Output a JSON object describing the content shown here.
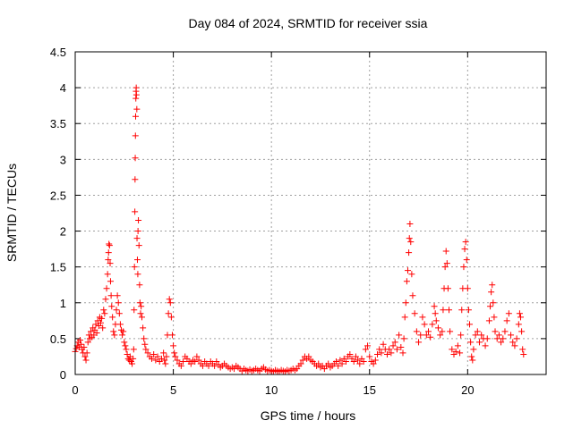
{
  "chart_data": {
    "type": "scatter",
    "title": "Day 084 of 2024, SRMTID for receiver ssia",
    "xlabel": "GPS time / hours",
    "ylabel": "SRMTID / TECUs",
    "xlim": [
      0,
      24
    ],
    "ylim": [
      0,
      4.5
    ],
    "xticks": [
      0,
      5,
      10,
      15,
      20
    ],
    "xtick_labels": [
      "0",
      "5",
      "10",
      "15",
      "20"
    ],
    "yticks": [
      0,
      0.5,
      1,
      1.5,
      2,
      2.5,
      3,
      3.5,
      4,
      4.5
    ],
    "ytick_labels": [
      "0",
      "0.5",
      "1",
      "1.5",
      "2",
      "2.5",
      "3",
      "3.5",
      "4",
      "4.5"
    ],
    "grid": true,
    "marker": "+",
    "color": "#ff0000",
    "series": [
      {
        "name": "SRMTID",
        "points": [
          [
            0.0,
            0.32
          ],
          [
            0.05,
            0.36
          ],
          [
            0.1,
            0.4
          ],
          [
            0.15,
            0.45
          ],
          [
            0.2,
            0.38
          ],
          [
            0.25,
            0.48
          ],
          [
            0.3,
            0.42
          ],
          [
            0.35,
            0.35
          ],
          [
            0.4,
            0.3
          ],
          [
            0.45,
            0.38
          ],
          [
            0.5,
            0.25
          ],
          [
            0.55,
            0.2
          ],
          [
            0.6,
            0.3
          ],
          [
            0.65,
            0.45
          ],
          [
            0.7,
            0.55
          ],
          [
            0.75,
            0.5
          ],
          [
            0.8,
            0.6
          ],
          [
            0.85,
            0.52
          ],
          [
            0.9,
            0.65
          ],
          [
            0.95,
            0.55
          ],
          [
            1.0,
            0.62
          ],
          [
            1.05,
            0.7
          ],
          [
            1.1,
            0.58
          ],
          [
            1.15,
            0.75
          ],
          [
            1.2,
            0.68
          ],
          [
            1.25,
            0.8
          ],
          [
            1.3,
            0.72
          ],
          [
            1.35,
            0.78
          ],
          [
            1.4,
            0.65
          ],
          [
            1.45,
            0.9
          ],
          [
            1.5,
            0.85
          ],
          [
            1.55,
            1.05
          ],
          [
            1.6,
            1.2
          ],
          [
            1.65,
            1.4
          ],
          [
            1.68,
            1.6
          ],
          [
            1.7,
            1.7
          ],
          [
            1.72,
            1.82
          ],
          [
            1.75,
            1.8
          ],
          [
            1.78,
            1.55
          ],
          [
            1.8,
            1.3
          ],
          [
            1.83,
            1.1
          ],
          [
            1.86,
            0.95
          ],
          [
            1.9,
            0.8
          ],
          [
            1.95,
            0.6
          ],
          [
            2.0,
            0.55
          ],
          [
            2.05,
            0.7
          ],
          [
            2.1,
            0.9
          ],
          [
            2.15,
            1.1
          ],
          [
            2.2,
            1.0
          ],
          [
            2.25,
            0.85
          ],
          [
            2.3,
            0.7
          ],
          [
            2.35,
            0.62
          ],
          [
            2.4,
            0.55
          ],
          [
            2.45,
            0.6
          ],
          [
            2.5,
            0.45
          ],
          [
            2.55,
            0.4
          ],
          [
            2.6,
            0.35
          ],
          [
            2.65,
            0.28
          ],
          [
            2.7,
            0.22
          ],
          [
            2.75,
            0.2
          ],
          [
            2.8,
            0.25
          ],
          [
            2.85,
            0.18
          ],
          [
            2.9,
            0.15
          ],
          [
            2.95,
            0.22
          ],
          [
            2.98,
            0.35
          ],
          [
            3.0,
            0.9
          ],
          [
            3.02,
            1.5
          ],
          [
            3.04,
            2.27
          ],
          [
            3.05,
            2.72
          ],
          [
            3.06,
            3.02
          ],
          [
            3.07,
            3.33
          ],
          [
            3.08,
            3.6
          ],
          [
            3.09,
            3.85
          ],
          [
            3.1,
            3.95
          ],
          [
            3.11,
            4.0
          ],
          [
            3.12,
            3.9
          ],
          [
            3.14,
            3.7
          ],
          [
            3.15,
            1.9
          ],
          [
            3.17,
            1.6
          ],
          [
            3.19,
            1.4
          ],
          [
            3.2,
            2.0
          ],
          [
            3.22,
            2.15
          ],
          [
            3.25,
            1.8
          ],
          [
            3.28,
            1.25
          ],
          [
            3.3,
            1.0
          ],
          [
            3.33,
            0.85
          ],
          [
            3.36,
            0.95
          ],
          [
            3.4,
            0.8
          ],
          [
            3.45,
            0.65
          ],
          [
            3.5,
            0.5
          ],
          [
            3.55,
            0.42
          ],
          [
            3.6,
            0.35
          ],
          [
            3.7,
            0.3
          ],
          [
            3.8,
            0.25
          ],
          [
            3.9,
            0.22
          ],
          [
            4.0,
            0.28
          ],
          [
            4.1,
            0.2
          ],
          [
            4.2,
            0.25
          ],
          [
            4.3,
            0.18
          ],
          [
            4.4,
            0.22
          ],
          [
            4.5,
            0.3
          ],
          [
            4.55,
            0.2
          ],
          [
            4.6,
            0.15
          ],
          [
            4.65,
            0.25
          ],
          [
            4.7,
            0.55
          ],
          [
            4.75,
            0.85
          ],
          [
            4.8,
            1.05
          ],
          [
            4.85,
            1.0
          ],
          [
            4.9,
            0.8
          ],
          [
            4.95,
            0.55
          ],
          [
            5.0,
            0.4
          ],
          [
            5.05,
            0.3
          ],
          [
            5.1,
            0.25
          ],
          [
            5.2,
            0.2
          ],
          [
            5.3,
            0.15
          ],
          [
            5.4,
            0.12
          ],
          [
            5.5,
            0.18
          ],
          [
            5.6,
            0.25
          ],
          [
            5.7,
            0.22
          ],
          [
            5.8,
            0.18
          ],
          [
            5.9,
            0.15
          ],
          [
            6.0,
            0.2
          ],
          [
            6.1,
            0.18
          ],
          [
            6.2,
            0.25
          ],
          [
            6.3,
            0.2
          ],
          [
            6.4,
            0.15
          ],
          [
            6.5,
            0.12
          ],
          [
            6.6,
            0.18
          ],
          [
            6.7,
            0.15
          ],
          [
            6.8,
            0.12
          ],
          [
            6.9,
            0.18
          ],
          [
            7.0,
            0.15
          ],
          [
            7.1,
            0.12
          ],
          [
            7.2,
            0.18
          ],
          [
            7.3,
            0.14
          ],
          [
            7.4,
            0.1
          ],
          [
            7.5,
            0.12
          ],
          [
            7.6,
            0.15
          ],
          [
            7.7,
            0.12
          ],
          [
            7.8,
            0.1
          ],
          [
            7.9,
            0.08
          ],
          [
            8.0,
            0.1
          ],
          [
            8.1,
            0.08
          ],
          [
            8.2,
            0.12
          ],
          [
            8.3,
            0.1
          ],
          [
            8.4,
            0.08
          ],
          [
            8.5,
            0.05
          ],
          [
            8.6,
            0.08
          ],
          [
            8.7,
            0.06
          ],
          [
            8.8,
            0.05
          ],
          [
            8.9,
            0.07
          ],
          [
            9.0,
            0.05
          ],
          [
            9.1,
            0.06
          ],
          [
            9.2,
            0.08
          ],
          [
            9.3,
            0.06
          ],
          [
            9.4,
            0.05
          ],
          [
            9.5,
            0.08
          ],
          [
            9.6,
            0.1
          ],
          [
            9.7,
            0.07
          ],
          [
            9.8,
            0.05
          ],
          [
            9.9,
            0.06
          ],
          [
            10.0,
            0.05
          ],
          [
            10.1,
            0.04
          ],
          [
            10.2,
            0.06
          ],
          [
            10.3,
            0.05
          ],
          [
            10.4,
            0.04
          ],
          [
            10.5,
            0.06
          ],
          [
            10.6,
            0.05
          ],
          [
            10.7,
            0.04
          ],
          [
            10.8,
            0.06
          ],
          [
            10.9,
            0.05
          ],
          [
            11.0,
            0.06
          ],
          [
            11.1,
            0.08
          ],
          [
            11.2,
            0.06
          ],
          [
            11.3,
            0.08
          ],
          [
            11.4,
            0.12
          ],
          [
            11.5,
            0.15
          ],
          [
            11.6,
            0.2
          ],
          [
            11.7,
            0.25
          ],
          [
            11.8,
            0.22
          ],
          [
            11.9,
            0.25
          ],
          [
            12.0,
            0.2
          ],
          [
            12.1,
            0.18
          ],
          [
            12.2,
            0.15
          ],
          [
            12.3,
            0.12
          ],
          [
            12.4,
            0.15
          ],
          [
            12.5,
            0.1
          ],
          [
            12.6,
            0.12
          ],
          [
            12.7,
            0.08
          ],
          [
            12.8,
            0.12
          ],
          [
            12.9,
            0.15
          ],
          [
            13.0,
            0.1
          ],
          [
            13.1,
            0.12
          ],
          [
            13.2,
            0.15
          ],
          [
            13.3,
            0.18
          ],
          [
            13.4,
            0.12
          ],
          [
            13.5,
            0.2
          ],
          [
            13.6,
            0.15
          ],
          [
            13.7,
            0.22
          ],
          [
            13.8,
            0.18
          ],
          [
            13.9,
            0.25
          ],
          [
            14.0,
            0.28
          ],
          [
            14.1,
            0.22
          ],
          [
            14.2,
            0.18
          ],
          [
            14.3,
            0.25
          ],
          [
            14.4,
            0.2
          ],
          [
            14.5,
            0.15
          ],
          [
            14.6,
            0.22
          ],
          [
            14.7,
            0.18
          ],
          [
            14.8,
            0.35
          ],
          [
            14.9,
            0.4
          ],
          [
            15.0,
            0.25
          ],
          [
            15.1,
            0.18
          ],
          [
            15.2,
            0.15
          ],
          [
            15.3,
            0.2
          ],
          [
            15.4,
            0.28
          ],
          [
            15.5,
            0.35
          ],
          [
            15.6,
            0.3
          ],
          [
            15.7,
            0.42
          ],
          [
            15.8,
            0.35
          ],
          [
            15.9,
            0.28
          ],
          [
            16.0,
            0.35
          ],
          [
            16.1,
            0.3
          ],
          [
            16.2,
            0.4
          ],
          [
            16.3,
            0.45
          ],
          [
            16.4,
            0.35
          ],
          [
            16.5,
            0.55
          ],
          [
            16.6,
            0.38
          ],
          [
            16.7,
            0.3
          ],
          [
            16.75,
            0.5
          ],
          [
            16.8,
            0.8
          ],
          [
            16.85,
            1.0
          ],
          [
            16.9,
            1.3
          ],
          [
            16.95,
            1.45
          ],
          [
            17.0,
            1.7
          ],
          [
            17.03,
            1.9
          ],
          [
            17.06,
            2.1
          ],
          [
            17.1,
            1.85
          ],
          [
            17.15,
            1.4
          ],
          [
            17.2,
            1.1
          ],
          [
            17.3,
            0.85
          ],
          [
            17.4,
            0.6
          ],
          [
            17.5,
            0.45
          ],
          [
            17.6,
            0.55
          ],
          [
            17.7,
            0.8
          ],
          [
            17.8,
            0.7
          ],
          [
            17.9,
            0.55
          ],
          [
            18.0,
            0.6
          ],
          [
            18.1,
            0.52
          ],
          [
            18.2,
            0.7
          ],
          [
            18.3,
            0.95
          ],
          [
            18.35,
            0.85
          ],
          [
            18.4,
            0.75
          ],
          [
            18.5,
            0.65
          ],
          [
            18.6,
            0.55
          ],
          [
            18.7,
            0.6
          ],
          [
            18.75,
            0.9
          ],
          [
            18.8,
            1.2
          ],
          [
            18.85,
            1.5
          ],
          [
            18.9,
            1.72
          ],
          [
            18.95,
            1.55
          ],
          [
            19.0,
            1.2
          ],
          [
            19.05,
            0.9
          ],
          [
            19.1,
            0.6
          ],
          [
            19.2,
            0.35
          ],
          [
            19.3,
            0.28
          ],
          [
            19.4,
            0.32
          ],
          [
            19.5,
            0.4
          ],
          [
            19.6,
            0.3
          ],
          [
            19.65,
            0.55
          ],
          [
            19.7,
            0.9
          ],
          [
            19.75,
            1.2
          ],
          [
            19.8,
            1.5
          ],
          [
            19.85,
            1.75
          ],
          [
            19.9,
            1.85
          ],
          [
            19.95,
            1.6
          ],
          [
            20.0,
            1.2
          ],
          [
            20.05,
            0.9
          ],
          [
            20.1,
            0.7
          ],
          [
            20.15,
            0.45
          ],
          [
            20.2,
            0.25
          ],
          [
            20.25,
            0.2
          ],
          [
            20.3,
            0.35
          ],
          [
            20.4,
            0.55
          ],
          [
            20.5,
            0.6
          ],
          [
            20.6,
            0.45
          ],
          [
            20.7,
            0.55
          ],
          [
            20.8,
            0.5
          ],
          [
            20.9,
            0.4
          ],
          [
            21.0,
            0.5
          ],
          [
            21.1,
            0.75
          ],
          [
            21.15,
            0.95
          ],
          [
            21.2,
            1.15
          ],
          [
            21.25,
            1.25
          ],
          [
            21.3,
            1.0
          ],
          [
            21.35,
            0.8
          ],
          [
            21.4,
            0.6
          ],
          [
            21.5,
            0.5
          ],
          [
            21.6,
            0.55
          ],
          [
            21.7,
            0.45
          ],
          [
            21.8,
            0.5
          ],
          [
            21.9,
            0.6
          ],
          [
            22.0,
            0.75
          ],
          [
            22.1,
            0.85
          ],
          [
            22.2,
            0.55
          ],
          [
            22.3,
            0.45
          ],
          [
            22.4,
            0.4
          ],
          [
            22.5,
            0.5
          ],
          [
            22.6,
            0.7
          ],
          [
            22.65,
            0.85
          ],
          [
            22.7,
            0.8
          ],
          [
            22.75,
            0.6
          ],
          [
            22.8,
            0.35
          ],
          [
            22.85,
            0.28
          ]
        ]
      }
    ]
  }
}
